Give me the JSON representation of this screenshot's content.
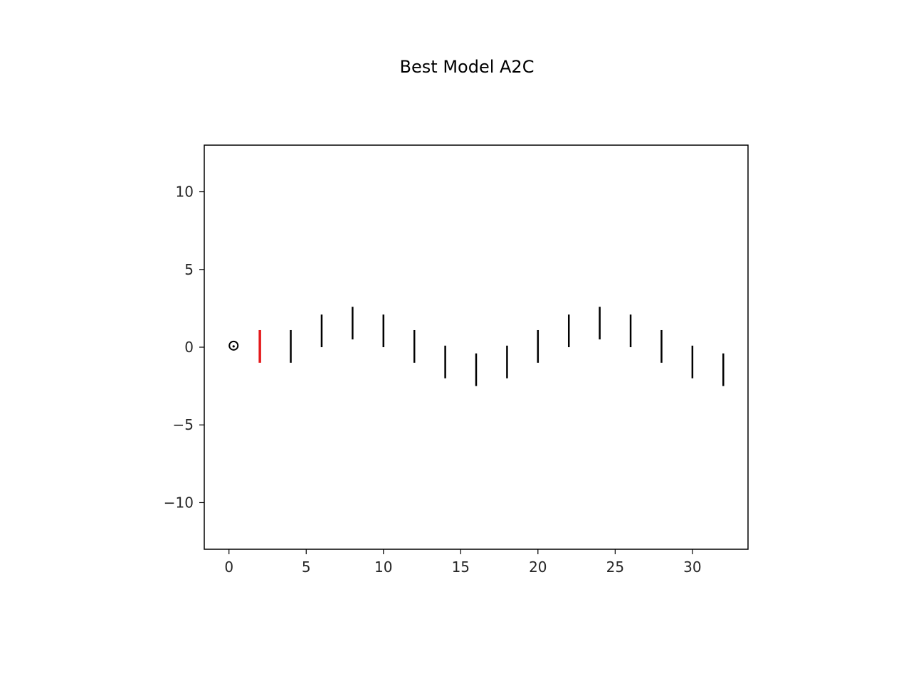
{
  "chart_data": {
    "type": "scatter",
    "title": "Best Model A2C",
    "xlabel": "",
    "ylabel": "",
    "xlim": [
      -1.6,
      33.6
    ],
    "ylim": [
      -13,
      13
    ],
    "xticks": [
      0,
      5,
      10,
      15,
      20,
      25,
      30
    ],
    "yticks": [
      10,
      5,
      0,
      -5,
      -10
    ],
    "xtick_labels": [
      "0",
      "5",
      "10",
      "15",
      "20",
      "25",
      "30"
    ],
    "ytick_labels": [
      "10",
      "5",
      "0",
      "−5",
      "−10"
    ],
    "grid": false,
    "agent": {
      "x": 0.3,
      "y": 0.1,
      "marker": "circle-with-dot"
    },
    "gates": [
      {
        "x": 2,
        "y_low": -1.0,
        "y_high": 1.1,
        "highlight": true
      },
      {
        "x": 4,
        "y_low": -1.0,
        "y_high": 1.1
      },
      {
        "x": 6,
        "y_low": 0.0,
        "y_high": 2.1
      },
      {
        "x": 8,
        "y_low": 0.5,
        "y_high": 2.6
      },
      {
        "x": 10,
        "y_low": 0.0,
        "y_high": 2.1
      },
      {
        "x": 12,
        "y_low": -1.0,
        "y_high": 1.1
      },
      {
        "x": 14,
        "y_low": -2.0,
        "y_high": 0.1
      },
      {
        "x": 16,
        "y_low": -2.5,
        "y_high": -0.4
      },
      {
        "x": 18,
        "y_low": -2.0,
        "y_high": 0.1
      },
      {
        "x": 20,
        "y_low": -1.0,
        "y_high": 1.1
      },
      {
        "x": 22,
        "y_low": 0.0,
        "y_high": 2.1
      },
      {
        "x": 24,
        "y_low": 0.5,
        "y_high": 2.6
      },
      {
        "x": 26,
        "y_low": 0.0,
        "y_high": 2.1
      },
      {
        "x": 28,
        "y_low": -1.0,
        "y_high": 1.1
      },
      {
        "x": 30,
        "y_low": -2.0,
        "y_high": 0.1
      },
      {
        "x": 32,
        "y_low": -2.5,
        "y_high": -0.4
      }
    ],
    "colors": {
      "gate": "#000000",
      "gate_highlight": "#e41a1c",
      "axes": "#000000",
      "agent": "#000000"
    }
  }
}
